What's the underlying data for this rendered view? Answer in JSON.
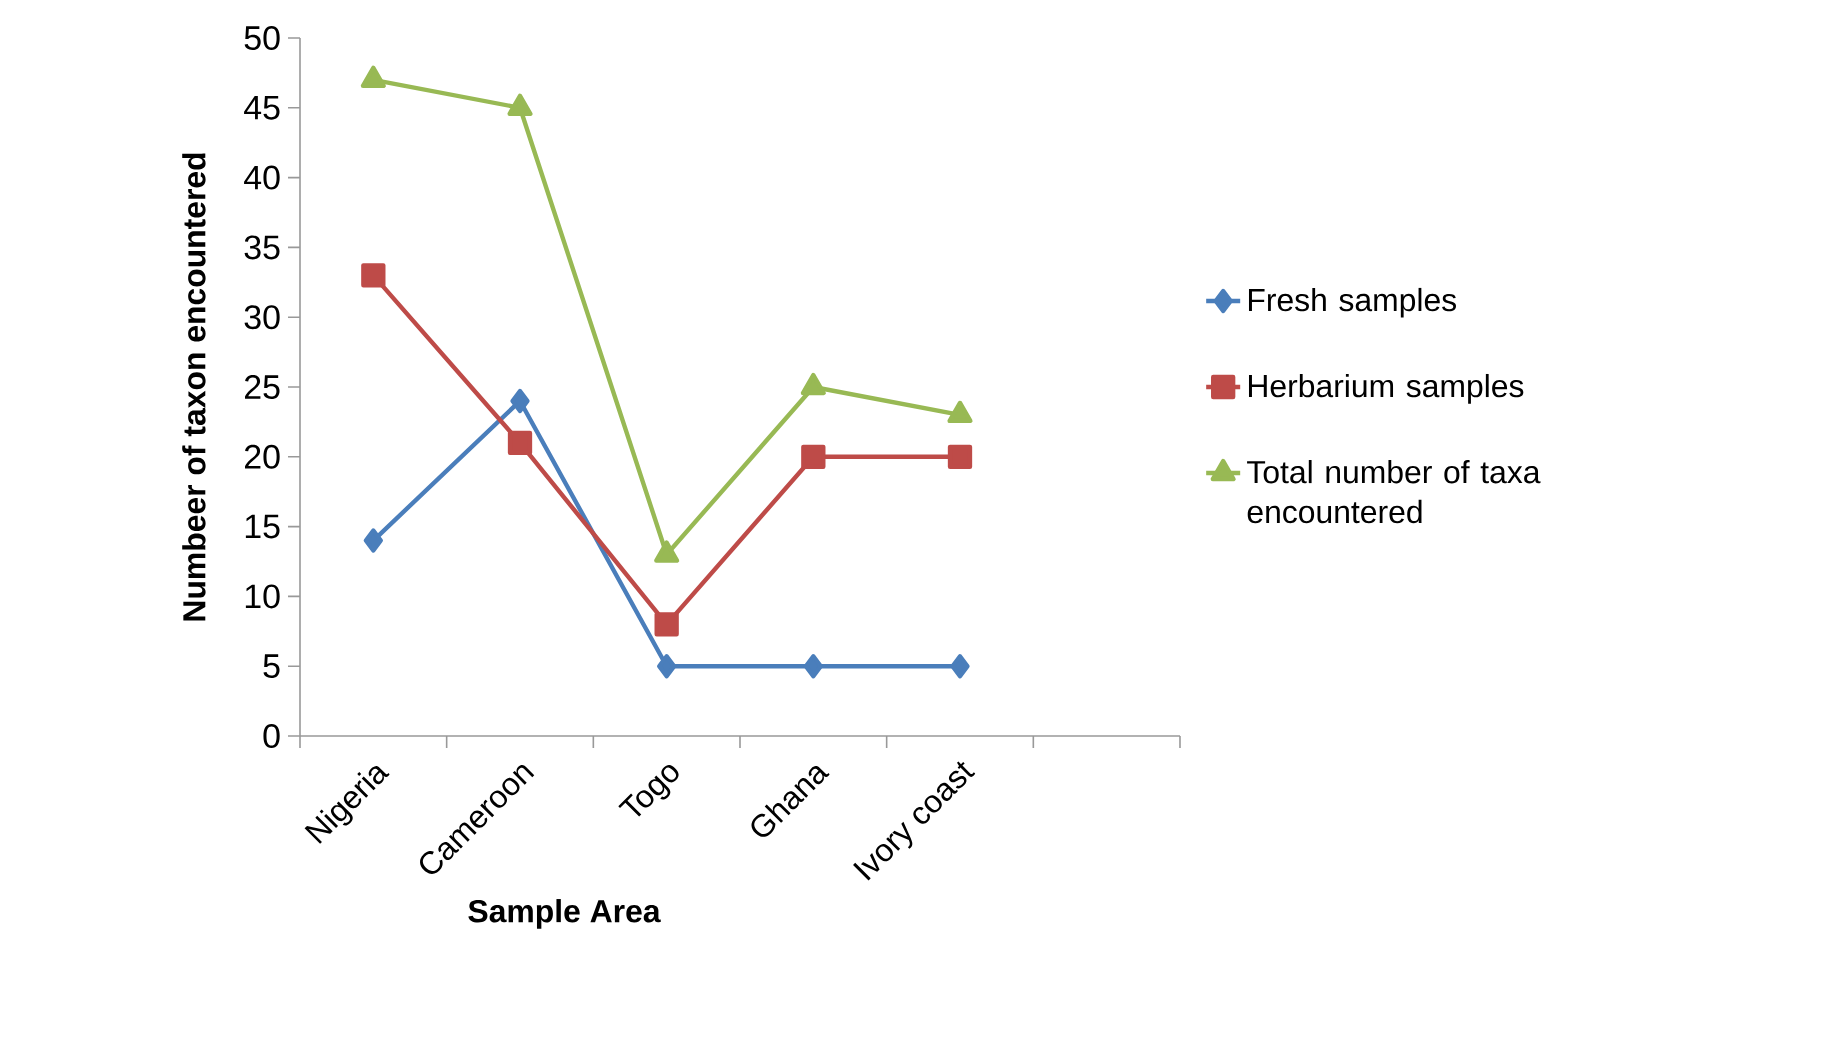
{
  "chart_data": {
    "type": "line",
    "xlabel": "Sample Area",
    "ylabel": "Numbeer of taxon encountered",
    "categories": [
      "Nigeria",
      "Cameroon",
      "Togo",
      "Ghana",
      "Ivory coast",
      null
    ],
    "series": [
      {
        "name": "Fresh samples",
        "color": "#4a7ebb",
        "marker": "diamond",
        "values": [
          14,
          24,
          5,
          5,
          5,
          null
        ]
      },
      {
        "name": "Herbarium samples",
        "color": "#be4b48",
        "marker": "square",
        "values": [
          33,
          21,
          8,
          20,
          20,
          null
        ]
      },
      {
        "name": "Total number of taxa encountered",
        "color": "#98b954",
        "marker": "triangle",
        "values": [
          47,
          45,
          13,
          25,
          23,
          null
        ]
      }
    ],
    "ylim": [
      0,
      50
    ],
    "yticks": [
      0,
      5,
      10,
      15,
      20,
      25,
      30,
      35,
      40,
      45,
      50
    ],
    "grid": false,
    "legend": "right",
    "line_style": "solid"
  }
}
